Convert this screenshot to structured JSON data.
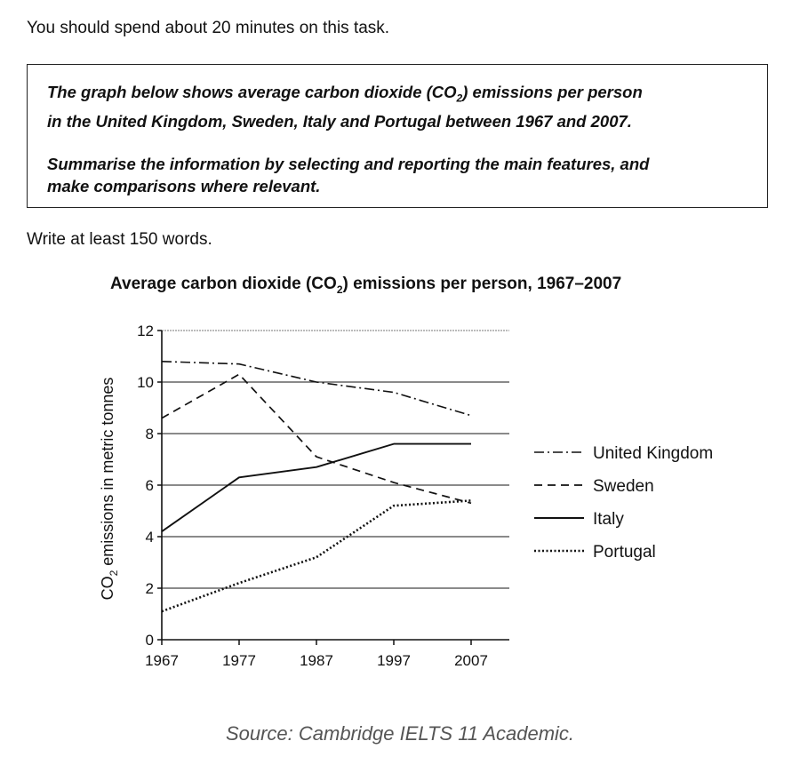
{
  "instruction": "You should spend about 20 minutes on this task.",
  "task_box": {
    "line1_pre": "The graph below shows average carbon dioxide (CO",
    "line1_sub": "2",
    "line1_post": ") emissions per person",
    "line2": "in the United Kingdom, Sweden, Italy and Portugal between 1967 and 2007.",
    "line3": "Summarise the information by selecting and reporting the main features, and",
    "line4": "make comparisons where relevant."
  },
  "min_words": "Write at least 150 words.",
  "source": "Source: Cambridge IELTS 11 Academic.",
  "chart_data": {
    "type": "line",
    "title_pre": "Average carbon dioxide (CO",
    "title_sub": "2",
    "title_post": ") emissions per person, 1967–2007",
    "ylabel_pre": "CO",
    "ylabel_sub": "2",
    "ylabel_post": " emissions in metric tonnes",
    "xlabel": "",
    "x": [
      "1967",
      "1977",
      "1987",
      "1997",
      "2007"
    ],
    "ylim": [
      0,
      12
    ],
    "yticks": [
      "0",
      "2",
      "4",
      "6",
      "8",
      "10",
      "12"
    ],
    "grid": true,
    "legend_position": "right",
    "series": [
      {
        "name": "United Kingdom",
        "style": "dashdot",
        "values": [
          10.8,
          10.7,
          10.0,
          9.6,
          8.7
        ]
      },
      {
        "name": "Sweden",
        "style": "dashed",
        "values": [
          8.6,
          10.3,
          7.1,
          6.1,
          5.3
        ]
      },
      {
        "name": "Italy",
        "style": "solid",
        "values": [
          4.2,
          6.3,
          6.7,
          7.6,
          7.6
        ]
      },
      {
        "name": "Portugal",
        "style": "dotted",
        "values": [
          1.1,
          2.2,
          3.2,
          5.2,
          5.4
        ]
      }
    ]
  }
}
